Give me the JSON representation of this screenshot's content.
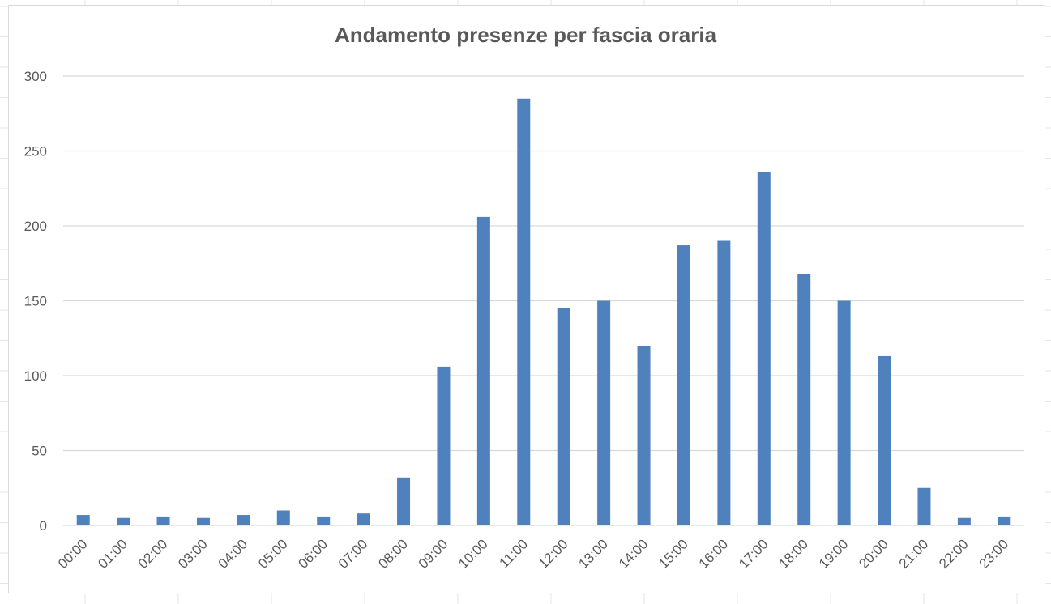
{
  "chart_data": {
    "type": "bar",
    "title": "Andamento presenze per fascia oraria",
    "xlabel": "",
    "ylabel": "",
    "categories": [
      "00:00",
      "01:00",
      "02:00",
      "03:00",
      "04:00",
      "05:00",
      "06:00",
      "07:00",
      "08:00",
      "09:00",
      "10:00",
      "11:00",
      "12:00",
      "13:00",
      "14:00",
      "15:00",
      "16:00",
      "17:00",
      "18:00",
      "19:00",
      "20:00",
      "21:00",
      "22:00",
      "23:00"
    ],
    "values": [
      7,
      5,
      6,
      5,
      7,
      10,
      6,
      8,
      32,
      106,
      206,
      285,
      145,
      150,
      120,
      187,
      190,
      236,
      168,
      150,
      113,
      25,
      5,
      6
    ],
    "ylim": [
      0,
      300
    ],
    "yticks": [
      "0",
      "50",
      "100",
      "150",
      "200",
      "250",
      "300"
    ],
    "grid": true,
    "legend": "none",
    "bar_color": "#4f81bd",
    "grid_color": "#d9d9d9"
  }
}
